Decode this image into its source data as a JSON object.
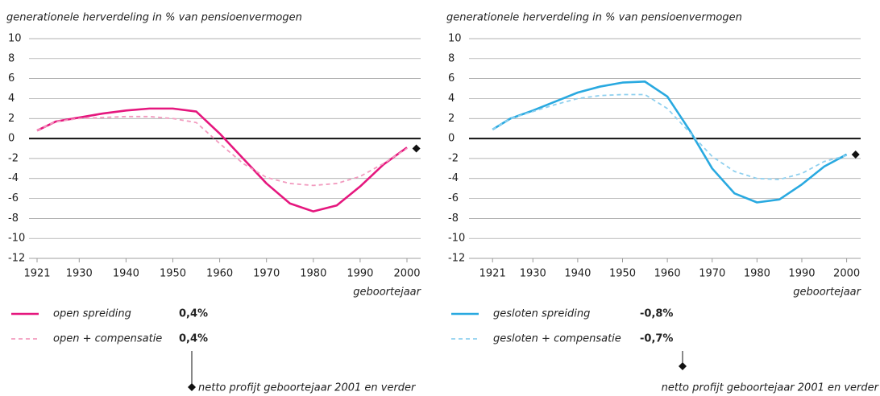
{
  "chart_data": [
    {
      "type": "line",
      "title": "generationele herverdeling in % van pensioenvermogen",
      "xlabel": "geboortejaar",
      "x": [
        1921,
        1925,
        1930,
        1935,
        1940,
        1945,
        1950,
        1955,
        1960,
        1965,
        1970,
        1975,
        1980,
        1985,
        1990,
        1995,
        2000
      ],
      "xlim": [
        1921,
        2000
      ],
      "xticks": [
        1921,
        1930,
        1940,
        1950,
        1960,
        1970,
        1980,
        1990,
        2000
      ],
      "ylim": [
        -12,
        10
      ],
      "yticks": [
        -12,
        -10,
        -8,
        -6,
        -4,
        -2,
        0,
        2,
        4,
        6,
        8,
        10
      ],
      "grid": true,
      "series": [
        {
          "name": "open spreiding",
          "color": "#e5177e",
          "dashed": false,
          "summary": {
            "value": 0.4,
            "label": "0,4%"
          },
          "values": [
            0.8,
            1.7,
            2.1,
            2.5,
            2.8,
            3.0,
            3.0,
            2.7,
            0.5,
            -2.0,
            -4.5,
            -6.5,
            -7.3,
            -6.7,
            -4.8,
            -2.6,
            -0.9
          ]
        },
        {
          "name": "open + compensatie",
          "color": "#f29bbf",
          "dashed": true,
          "summary": {
            "value": 0.4,
            "label": "0,4%"
          },
          "values": [
            0.8,
            1.7,
            2.0,
            2.1,
            2.2,
            2.2,
            2.0,
            1.6,
            -0.5,
            -2.5,
            -3.9,
            -4.5,
            -4.7,
            -4.5,
            -3.8,
            -2.5,
            -1.0
          ]
        }
      ],
      "marker": {
        "x": 2002,
        "y": -1,
        "label": "netto profijt geboortejaar 2001 en verder"
      }
    },
    {
      "type": "line",
      "title": "generationele herverdeling in % van pensioenvermogen",
      "xlabel": "geboortejaar",
      "x": [
        1921,
        1925,
        1930,
        1935,
        1940,
        1945,
        1950,
        1955,
        1960,
        1965,
        1970,
        1975,
        1980,
        1985,
        1990,
        1995,
        2000
      ],
      "xlim": [
        1921,
        2000
      ],
      "xticks": [
        1921,
        1930,
        1940,
        1950,
        1960,
        1970,
        1980,
        1990,
        2000
      ],
      "ylim": [
        -12,
        10
      ],
      "yticks": [
        -12,
        -10,
        -8,
        -6,
        -4,
        -2,
        0,
        2,
        4,
        6,
        8,
        10
      ],
      "grid": true,
      "series": [
        {
          "name": "gesloten spreiding",
          "color": "#29a9e0",
          "dashed": false,
          "summary": {
            "value": -0.8,
            "label": "-0,8%"
          },
          "values": [
            0.9,
            2.0,
            2.8,
            3.7,
            4.6,
            5.2,
            5.6,
            5.7,
            4.2,
            0.8,
            -3.0,
            -5.5,
            -6.4,
            -6.1,
            -4.6,
            -2.8,
            -1.6
          ]
        },
        {
          "name": "gesloten + compensatie",
          "color": "#8fd0ef",
          "dashed": true,
          "summary": {
            "value": -0.7,
            "label": "-0,7%"
          },
          "values": [
            0.9,
            2.0,
            2.7,
            3.4,
            4.0,
            4.3,
            4.4,
            4.4,
            3.0,
            0.6,
            -1.8,
            -3.3,
            -4.0,
            -4.1,
            -3.5,
            -2.3,
            -1.7
          ]
        }
      ],
      "marker": {
        "x": 2002,
        "y": -1.6,
        "label": "netto profijt geboortejaar 2001 en verder"
      }
    }
  ]
}
